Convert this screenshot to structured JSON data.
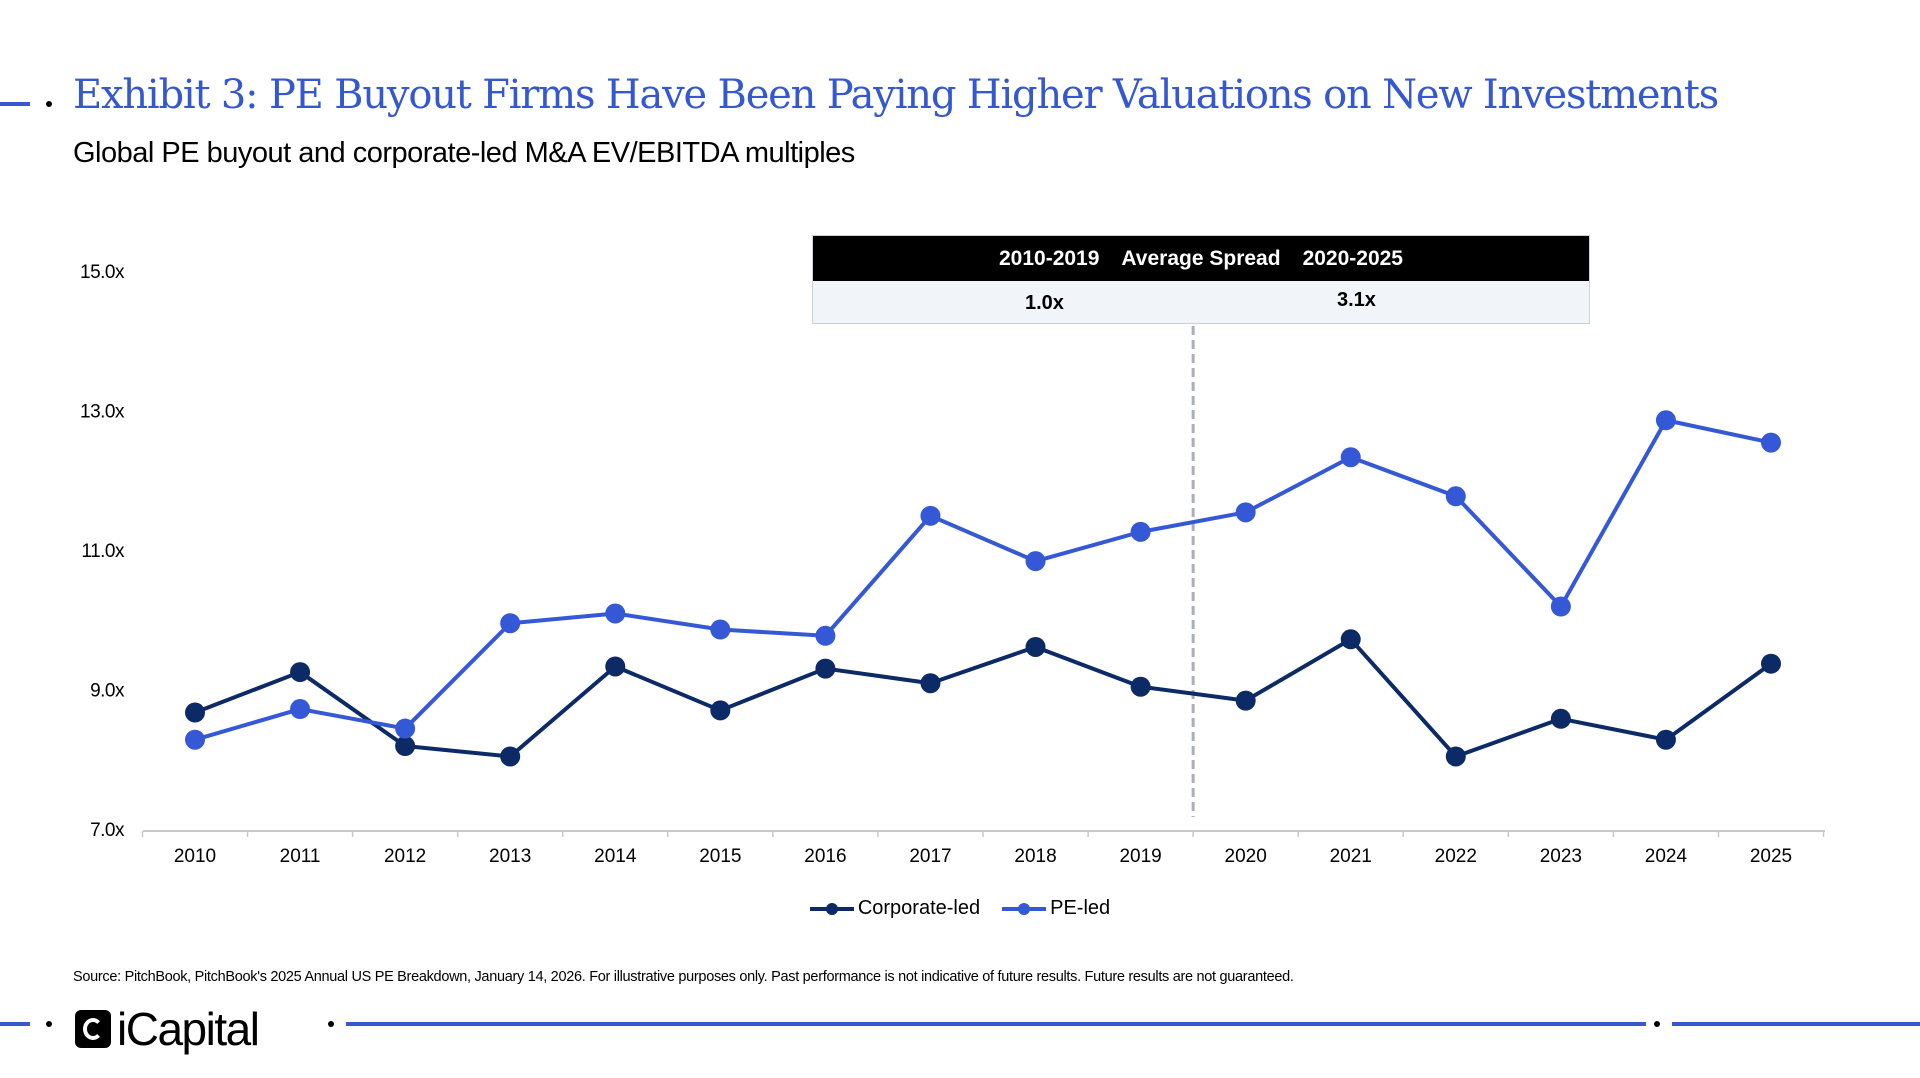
{
  "header": {
    "title": "Exhibit 3: PE Buyout Firms Have Been Paying Higher Valuations on New Investments",
    "subtitle": "Global PE buyout and corporate-led M&A EV/EBITDA multiples"
  },
  "spread_table": {
    "col_left": "2010-2019",
    "col_mid": "Average Spread",
    "col_right": "2020-2025",
    "val_left": "1.0x",
    "val_right": "3.1x"
  },
  "chart_data": {
    "type": "line",
    "title": "Global PE buyout and corporate-led M&A EV/EBITDA multiples",
    "xlabel": "",
    "ylabel": "",
    "x": [
      "2010",
      "2011",
      "2012",
      "2013",
      "2014",
      "2015",
      "2016",
      "2017",
      "2018",
      "2019",
      "2020",
      "2021",
      "2022",
      "2023",
      "2024",
      "2025"
    ],
    "ylim": [
      7.0,
      15.0
    ],
    "yticks": [
      7.0,
      9.0,
      11.0,
      13.0,
      15.0
    ],
    "ytick_labels": [
      "7.0x",
      "9.0x",
      "11.0x",
      "13.0x",
      "15.0x"
    ],
    "grid": false,
    "legend_position": "bottom-center",
    "divider_between": [
      "2019",
      "2020"
    ],
    "series": [
      {
        "name": "Corporate-led",
        "color": "#0c2a66",
        "values": [
          8.67,
          9.25,
          8.19,
          8.04,
          9.33,
          8.7,
          9.3,
          9.09,
          9.61,
          9.04,
          8.84,
          9.72,
          8.04,
          8.58,
          8.28,
          9.37
        ]
      },
      {
        "name": "PE-led",
        "color": "#3558d6",
        "values": [
          8.28,
          8.72,
          8.44,
          9.95,
          10.09,
          9.86,
          9.77,
          11.49,
          10.84,
          11.26,
          11.54,
          12.33,
          11.77,
          10.19,
          12.86,
          12.54
        ]
      }
    ]
  },
  "footer": {
    "source": "Source: PitchBook, PitchBook's 2025 Annual US PE Breakdown, January 14, 2026. For illustrative purposes only. Past performance is not indicative of future results. Future results are not guaranteed.",
    "logo_text": "iCapital"
  }
}
